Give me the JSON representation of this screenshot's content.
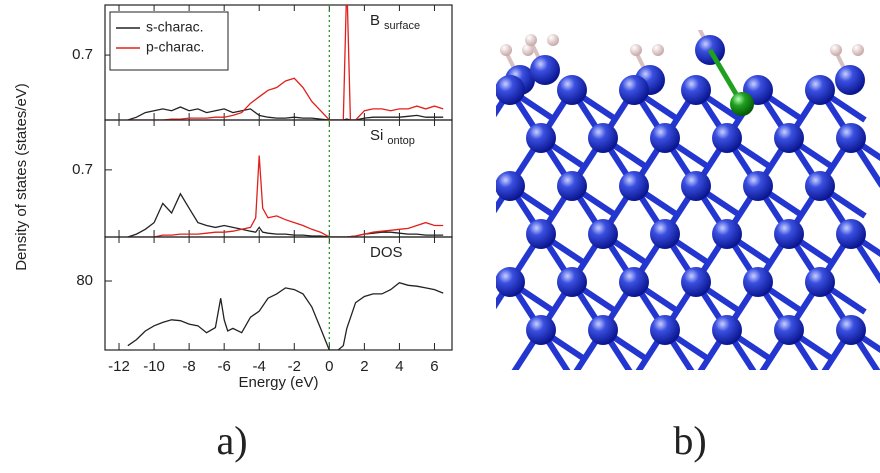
{
  "chart_data": [
    {
      "type": "line",
      "label": "B",
      "label_sub": "surface",
      "xlim": [
        -12.8,
        7
      ],
      "ylim": [
        0,
        1.24
      ],
      "yticks": [
        0.7
      ],
      "fermi_level": 0,
      "x": [
        -11.5,
        -11,
        -10.5,
        -10,
        -9.5,
        -9,
        -8.5,
        -8,
        -7.5,
        -7,
        -6.5,
        -6,
        -5.5,
        -5,
        -4.5,
        -4,
        -3.5,
        -3,
        -2.5,
        -2,
        -1.5,
        -1,
        -0.5,
        0,
        0.5,
        0.8,
        1,
        1.2,
        1.5,
        2,
        2.5,
        3,
        3.5,
        4,
        4.5,
        5,
        5.5,
        6,
        6.5
      ],
      "series": [
        {
          "name": "s-charac.",
          "color": "#222222",
          "values": [
            0,
            0.03,
            0.08,
            0.1,
            0.12,
            0.1,
            0.14,
            0.1,
            0.12,
            0.08,
            0.1,
            0.12,
            0.08,
            0.1,
            0.12,
            0.05,
            0.03,
            0.02,
            0.02,
            0.03,
            0.02,
            0.02,
            0.01,
            0,
            0,
            0,
            0.01,
            0,
            0,
            0.02,
            0.03,
            0.03,
            0.03,
            0.03,
            0.04,
            0.05,
            0.03,
            0.03,
            0.03
          ]
        },
        {
          "name": "p-charac.",
          "color": "#e0201b",
          "values": [
            0,
            0,
            0,
            0,
            0,
            0.01,
            0.01,
            0.02,
            0.02,
            0.02,
            0.03,
            0.03,
            0.05,
            0.08,
            0.18,
            0.25,
            0.32,
            0.35,
            0.42,
            0.45,
            0.35,
            0.2,
            0.1,
            0,
            0,
            0,
            1.5,
            0,
            0,
            0.1,
            0.12,
            0.12,
            0.1,
            0.12,
            0.12,
            0.15,
            0.12,
            0.15,
            0.12
          ]
        }
      ]
    },
    {
      "type": "line",
      "label": "Si",
      "label_sub": "ontop",
      "xlim": [
        -12.8,
        7
      ],
      "ylim": [
        0,
        1.22
      ],
      "yticks": [
        0.7
      ],
      "fermi_level": 0,
      "x": [
        -11.5,
        -11,
        -10.5,
        -10,
        -9.5,
        -9,
        -8.5,
        -8,
        -7.5,
        -7,
        -6.5,
        -6,
        -5.5,
        -5,
        -4.5,
        -4.2,
        -4,
        -3.8,
        -3.5,
        -3,
        -2.5,
        -2,
        -1.5,
        -1,
        -0.5,
        0,
        0.5,
        1,
        1.5,
        2,
        2.5,
        3,
        3.5,
        4,
        4.5,
        5,
        5.5,
        6,
        6.5
      ],
      "series": [
        {
          "color": "#222222",
          "values": [
            0,
            0.03,
            0.08,
            0.15,
            0.35,
            0.25,
            0.45,
            0.3,
            0.15,
            0.12,
            0.1,
            0.12,
            0.1,
            0.08,
            0.06,
            0.05,
            0.1,
            0.05,
            0.04,
            0.03,
            0.03,
            0.02,
            0.02,
            0.01,
            0.01,
            0,
            0,
            0,
            0.01,
            0.03,
            0.04,
            0.05,
            0.05,
            0.04,
            0.03,
            0.03,
            0.02,
            0.02,
            0.02
          ]
        },
        {
          "color": "#e0201b",
          "values": [
            0,
            0,
            0,
            0,
            0.02,
            0.02,
            0.03,
            0.03,
            0.03,
            0.04,
            0.05,
            0.05,
            0.06,
            0.08,
            0.1,
            0.2,
            0.85,
            0.3,
            0.2,
            0.22,
            0.18,
            0.15,
            0.12,
            0.08,
            0.05,
            0,
            0,
            0,
            0.01,
            0.03,
            0.05,
            0.06,
            0.07,
            0.08,
            0.09,
            0.12,
            0.15,
            0.12,
            0.12
          ]
        }
      ]
    },
    {
      "type": "line",
      "label": "DOS",
      "xlim": [
        -12.8,
        7
      ],
      "ylim": [
        0,
        131
      ],
      "yticks": [
        80
      ],
      "fermi_level": 0,
      "xticks": [
        -12,
        -10,
        -8,
        -6,
        -4,
        -2,
        0,
        2,
        4,
        6
      ],
      "x_label": "Energy (eV)",
      "y_label": "Density of states (states/eV)",
      "x": [
        -11.5,
        -11,
        -10.5,
        -10,
        -9.5,
        -9,
        -8.5,
        -8,
        -7.5,
        -7,
        -6.5,
        -6.2,
        -6,
        -5.8,
        -5.5,
        -5,
        -4.5,
        -4,
        -3.5,
        -3,
        -2.5,
        -2,
        -1.5,
        -1,
        -0.5,
        -0.2,
        0,
        0.5,
        0.8,
        1,
        1.5,
        2,
        2.5,
        3,
        3.5,
        4,
        4.5,
        5,
        5.5,
        6,
        6.5
      ],
      "series": [
        {
          "color": "#222222",
          "values": [
            5,
            12,
            22,
            28,
            32,
            35,
            34,
            30,
            28,
            20,
            26,
            60,
            35,
            22,
            25,
            20,
            38,
            45,
            60,
            65,
            72,
            70,
            65,
            50,
            25,
            10,
            0,
            0,
            5,
            25,
            55,
            62,
            65,
            65,
            70,
            78,
            75,
            74,
            72,
            70,
            66
          ]
        }
      ]
    }
  ],
  "captions": [
    "a)",
    "b)"
  ]
}
